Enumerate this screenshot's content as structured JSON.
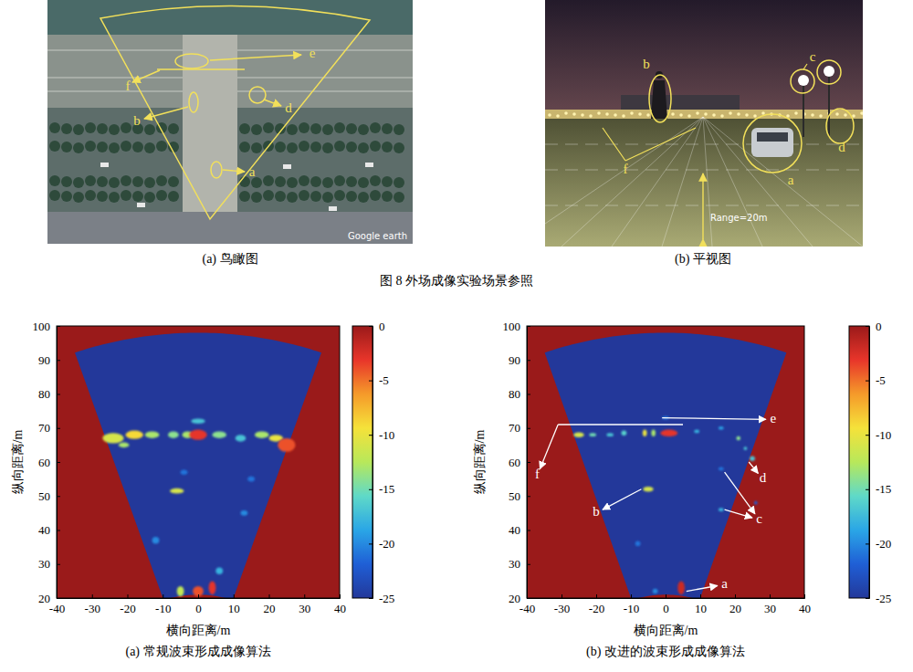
{
  "figure_caption": "图 8 外场成像实验场景参照",
  "photos": [
    {
      "caption": "(a) 鸟瞰图",
      "labels": [
        "e",
        "f",
        "b",
        "d",
        "a"
      ],
      "watermark": "Google earth"
    },
    {
      "caption": "(b) 平视图",
      "labels": [
        "b",
        "c",
        "f",
        "d",
        "a"
      ],
      "range_label": "Range=20m"
    }
  ],
  "chart_data": [
    {
      "type": "heatmap",
      "title": "(a) 常规波束形成成像算法",
      "x_label": "横向距离/m",
      "y_label": "纵向距离/m",
      "xlim": [
        -40,
        40
      ],
      "xticks": [
        -40,
        -30,
        -20,
        -10,
        0,
        10,
        20,
        30,
        40
      ],
      "ylim": [
        20,
        100
      ],
      "yticks": [
        20,
        30,
        40,
        50,
        60,
        70,
        80,
        90,
        100
      ],
      "colorbar": {
        "range": [
          -25,
          0
        ],
        "ticks": [
          0,
          -5,
          -10,
          -15,
          -20,
          -25
        ]
      },
      "sector": {
        "apex": [
          0,
          -9
        ],
        "radius": [
          30,
          107
        ],
        "half_angle": 19
      },
      "cells": [
        {
          "x": -24,
          "y": 67,
          "width": 6,
          "height": 3,
          "value": -11
        },
        {
          "x": -18,
          "y": 68,
          "width": 5,
          "height": 2.5,
          "value": -9
        },
        {
          "x": -13,
          "y": 68,
          "width": 4,
          "height": 2,
          "value": -13
        },
        {
          "x": -7,
          "y": 68,
          "width": 3,
          "height": 2,
          "value": -14
        },
        {
          "x": -3,
          "y": 68,
          "width": 3,
          "height": 2,
          "value": -13
        },
        {
          "x": 0,
          "y": 68,
          "width": 5,
          "height": 3,
          "value": -3
        },
        {
          "x": 6,
          "y": 68,
          "width": 4,
          "height": 2,
          "value": -14
        },
        {
          "x": 12,
          "y": 67,
          "width": 3,
          "height": 2,
          "value": -17
        },
        {
          "x": 18,
          "y": 68,
          "width": 4,
          "height": 2,
          "value": -13
        },
        {
          "x": 25,
          "y": 65,
          "width": 5,
          "height": 4,
          "value": -4
        },
        {
          "x": 22,
          "y": 67,
          "width": 4,
          "height": 2,
          "value": -10
        },
        {
          "x": 0,
          "y": 72,
          "width": 4,
          "height": 1.5,
          "value": -17
        },
        {
          "x": -6,
          "y": 51.5,
          "width": 4,
          "height": 1.5,
          "value": -11
        },
        {
          "x": -12,
          "y": 37,
          "width": 2,
          "height": 2,
          "value": -20
        },
        {
          "x": 0,
          "y": 22,
          "width": 3,
          "height": 3,
          "value": -4
        },
        {
          "x": 4,
          "y": 23,
          "width": 2,
          "height": 4,
          "value": -3
        },
        {
          "x": -5,
          "y": 22,
          "width": 2,
          "height": 3,
          "value": -12
        },
        {
          "x": 6,
          "y": 28,
          "width": 2,
          "height": 2,
          "value": -18
        },
        {
          "x": 13,
          "y": 45,
          "width": 2,
          "height": 1.5,
          "value": -20
        },
        {
          "x": -4,
          "y": 57,
          "width": 2,
          "height": 1.5,
          "value": -21
        },
        {
          "x": 15,
          "y": 55,
          "width": 2,
          "height": 1.5,
          "value": -21
        },
        {
          "x": -21,
          "y": 65,
          "width": 3,
          "height": 1.5,
          "value": -13
        }
      ]
    },
    {
      "type": "heatmap",
      "title": "(b) 改进的波束形成成像算法",
      "x_label": "横向距离/m",
      "y_label": "纵向距离/m",
      "xlim": [
        -40,
        40
      ],
      "xticks": [
        -40,
        -30,
        -20,
        -10,
        0,
        10,
        20,
        30,
        40
      ],
      "ylim": [
        20,
        100
      ],
      "yticks": [
        20,
        30,
        40,
        50,
        60,
        70,
        80,
        90,
        100
      ],
      "colorbar": {
        "range": [
          -25,
          0
        ],
        "ticks": [
          0,
          -5,
          -10,
          -15,
          -20,
          -25
        ]
      },
      "sector": {
        "apex": [
          0,
          -9
        ],
        "radius": [
          30,
          107
        ],
        "half_angle": 19
      },
      "cells": [
        {
          "x": -25,
          "y": 68,
          "width": 3,
          "height": 1.5,
          "value": -11
        },
        {
          "x": -21,
          "y": 68,
          "width": 2,
          "height": 1,
          "value": -15
        },
        {
          "x": -16,
          "y": 68,
          "width": 2,
          "height": 1,
          "value": -17
        },
        {
          "x": -12,
          "y": 68.5,
          "width": 1.5,
          "height": 1.5,
          "value": -16
        },
        {
          "x": -6,
          "y": 68.5,
          "width": 1.2,
          "height": 2,
          "value": -10
        },
        {
          "x": -3.5,
          "y": 68.5,
          "width": 1.2,
          "height": 2,
          "value": -13
        },
        {
          "x": 1,
          "y": 68.5,
          "width": 5,
          "height": 2,
          "value": -3
        },
        {
          "x": 9,
          "y": 69,
          "width": 1.5,
          "height": 1,
          "value": -18
        },
        {
          "x": 16,
          "y": 70,
          "width": 1.5,
          "height": 1,
          "value": -19
        },
        {
          "x": 21,
          "y": 67,
          "width": 1.2,
          "height": 1.2,
          "value": -14
        },
        {
          "x": 23,
          "y": 64,
          "width": 1,
          "height": 1,
          "value": -17
        },
        {
          "x": 0,
          "y": 73,
          "width": 2,
          "height": 1,
          "value": -21
        },
        {
          "x": -5,
          "y": 52,
          "width": 3,
          "height": 1.5,
          "value": -11
        },
        {
          "x": -8,
          "y": 36,
          "width": 1.5,
          "height": 1.5,
          "value": -21
        },
        {
          "x": 16,
          "y": 58,
          "width": 1.5,
          "height": 1,
          "value": -21
        },
        {
          "x": 16,
          "y": 46,
          "width": 1.5,
          "height": 1,
          "value": -18
        },
        {
          "x": 25,
          "y": 61,
          "width": 1.5,
          "height": 1.5,
          "value": -17
        },
        {
          "x": 4.5,
          "y": 23,
          "width": 2,
          "height": 4,
          "value": -2
        },
        {
          "x": -3,
          "y": 22,
          "width": 1.5,
          "height": 1.5,
          "value": -20
        },
        {
          "x": 26,
          "y": 48,
          "width": 1,
          "height": 1,
          "value": -22
        }
      ],
      "annotations": [
        {
          "text": "e",
          "x": 31,
          "y": 72.5,
          "from": [
            [
              -1,
              73
            ]
          ]
        },
        {
          "text": "f",
          "x": -37,
          "y": 56,
          "from": [
            [
              -31,
              71
            ]
          ],
          "line": [
            [
              -31,
              71
            ],
            [
              5,
              71
            ]
          ]
        },
        {
          "text": "d",
          "x": 28,
          "y": 55,
          "from": [
            [
              24,
              60
            ]
          ]
        },
        {
          "text": "c",
          "x": 27,
          "y": 43,
          "from": [
            [
              17,
              57
            ],
            [
              17,
              46
            ]
          ]
        },
        {
          "text": "b",
          "x": -20,
          "y": 45,
          "from": [
            [
              -7,
              52
            ]
          ]
        },
        {
          "text": "a",
          "x": 17,
          "y": 24,
          "from": [
            [
              6,
              22
            ]
          ]
        }
      ]
    }
  ]
}
